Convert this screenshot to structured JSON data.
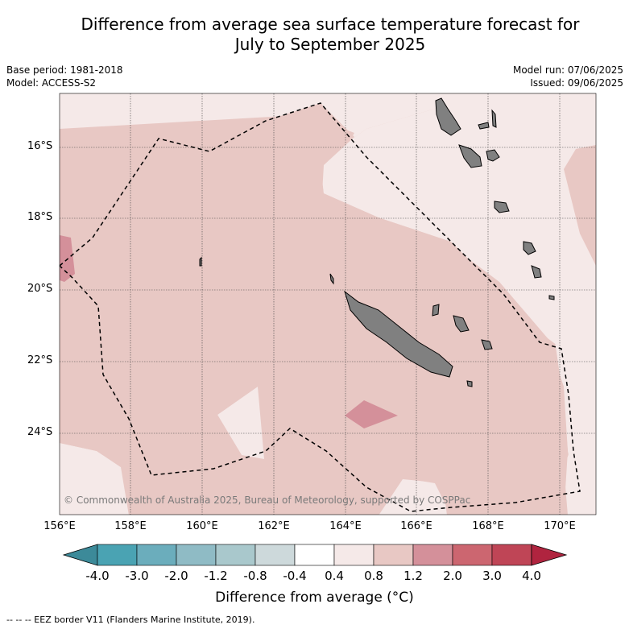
{
  "title_line1": "Difference from average sea surface temperature forecast for",
  "title_line2": "July to September 2025",
  "base_period": "Base period: 1981-2018",
  "model": "Model: ACCESS-S2",
  "model_run": "Model run: 07/06/2025",
  "issued": "Issued: 09/06/2025",
  "copyright": "© Commonwealth of Australia 2025, Bureau of Meteorology, supported by COSPPac",
  "footer": "--  --  -- EEZ border V11 (Flanders Marine Institute, 2019).",
  "colorbar_title": "Difference from average (°C)",
  "lat_labels": [
    "16°S",
    "18°S",
    "20°S",
    "22°S",
    "24°S"
  ],
  "lon_labels": [
    "156°E",
    "158°E",
    "160°E",
    "162°E",
    "164°E",
    "166°E",
    "168°E",
    "170°E"
  ],
  "colorbar": {
    "ticks": [
      "-4.0",
      "-3.0",
      "-2.0",
      "-1.2",
      "-0.8",
      "-0.4",
      "0.4",
      "0.8",
      "1.2",
      "2.0",
      "3.0",
      "4.0"
    ],
    "colors": [
      "#3c8a99",
      "#4aa3b3",
      "#6badbc",
      "#8fbbc5",
      "#a9c8cc",
      "#cdd9db",
      "#ffffff",
      "#f5e9e8",
      "#e8c8c4",
      "#d4909a",
      "#cc6670",
      "#bf4556",
      "#b0243f"
    ]
  },
  "legend_colors": {
    "anomaly_0_4_0_8": "#f5e9e8",
    "anomaly_0_8_1_2": "#e8c8c4",
    "anomaly_1_2_2_0": "#d4909a",
    "land": "#808080"
  }
}
